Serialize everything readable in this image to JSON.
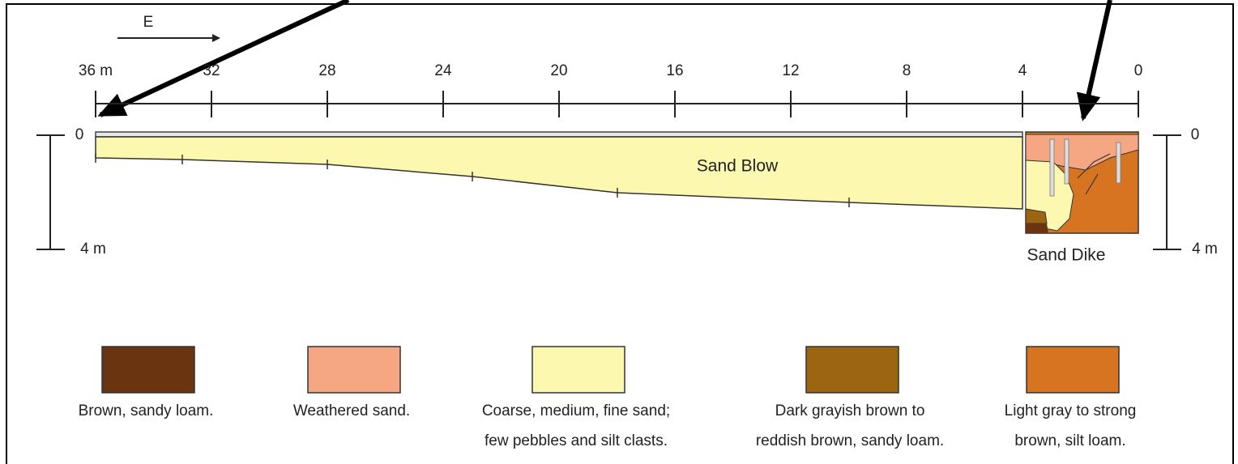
{
  "direction": "E",
  "scale": {
    "labels": [
      "36 m",
      "32",
      "28",
      "24",
      "20",
      "16",
      "12",
      "8",
      "4",
      "0"
    ]
  },
  "depth_left": {
    "top": "0",
    "bottom": "4 m"
  },
  "depth_right": {
    "top": "0",
    "bottom": "4 m"
  },
  "regions": {
    "sand_blow": "Sand Blow",
    "sand_dike": "Sand Dike"
  },
  "legend": [
    {
      "color": "#6b3410",
      "lines": [
        "Brown, sandy loam."
      ]
    },
    {
      "color": "#f5a784",
      "lines": [
        "Weathered sand."
      ]
    },
    {
      "color": "#fdf8b0",
      "lines": [
        "Coarse, medium, fine sand;",
        "few pebbles and silt clasts."
      ]
    },
    {
      "color": "#9b6512",
      "lines": [
        "Dark grayish brown to",
        "reddish brown, sandy loam."
      ]
    },
    {
      "color": "#d67421",
      "lines": [
        "Light gray to strong",
        "brown, silt loam."
      ]
    }
  ]
}
